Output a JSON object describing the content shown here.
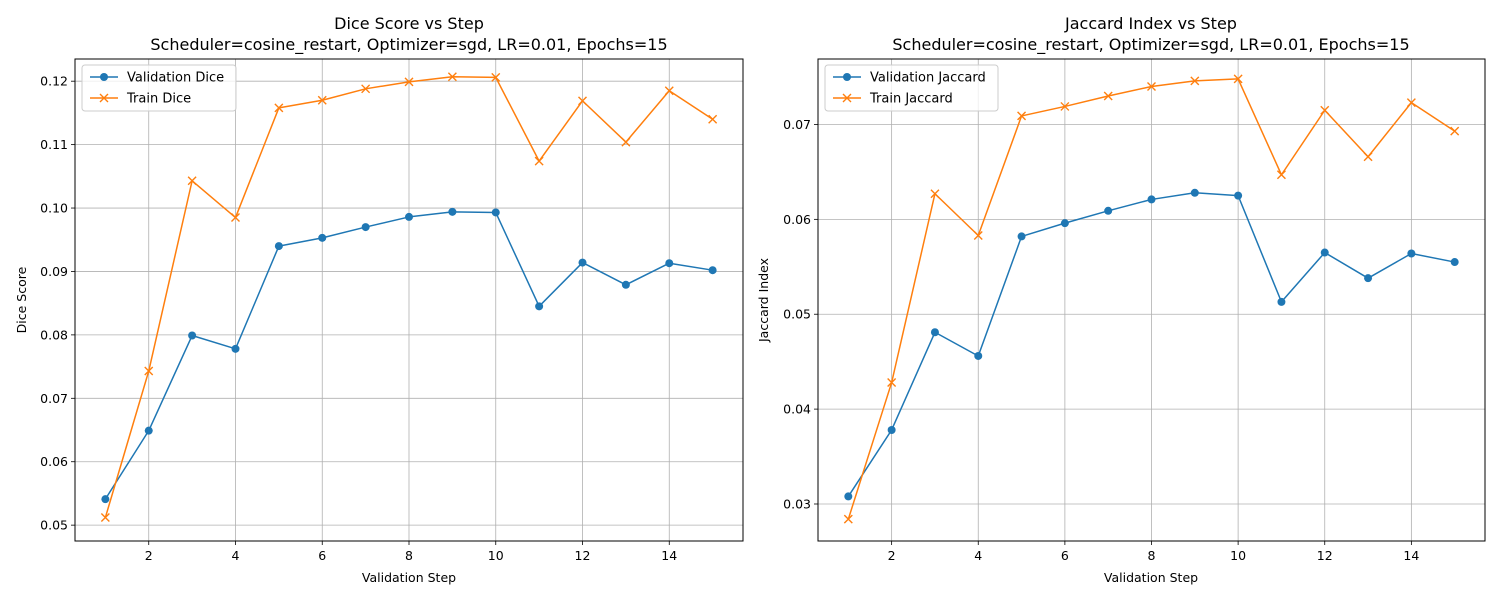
{
  "chart_data": [
    {
      "type": "line",
      "title": "Dice Score vs Step",
      "subtitle": "Scheduler=cosine_restart, Optimizer=sgd, LR=0.01, Epochs=15",
      "xlabel": "Validation Step",
      "ylabel": "Dice Score",
      "xlim": [
        0.3,
        15.7
      ],
      "ylim": [
        0.0475,
        0.1235
      ],
      "xticks": [
        2,
        4,
        6,
        8,
        10,
        12,
        14
      ],
      "yticks": [
        0.05,
        0.06,
        0.07,
        0.08,
        0.09,
        0.1,
        0.11,
        0.12
      ],
      "ytick_labels": [
        "0.05",
        "0.06",
        "0.07",
        "0.08",
        "0.09",
        "0.10",
        "0.11",
        "0.12"
      ],
      "grid": true,
      "legend_position": "top-left",
      "x": [
        1,
        2,
        3,
        4,
        5,
        6,
        7,
        8,
        9,
        10,
        11,
        12,
        13,
        14,
        15
      ],
      "series": [
        {
          "name": "Validation Dice",
          "color": "#1f77b4",
          "marker": "circle",
          "values": [
            0.0541,
            0.0649,
            0.0799,
            0.0778,
            0.094,
            0.0953,
            0.097,
            0.0986,
            0.0994,
            0.0993,
            0.0845,
            0.0914,
            0.0879,
            0.0913,
            0.0902
          ]
        },
        {
          "name": "Train Dice",
          "color": "#ff7f0e",
          "marker": "x",
          "values": [
            0.0512,
            0.0743,
            0.1043,
            0.0985,
            0.1158,
            0.117,
            0.1188,
            0.1199,
            0.1207,
            0.1206,
            0.1074,
            0.1169,
            0.1104,
            0.1185,
            0.114
          ]
        }
      ]
    },
    {
      "type": "line",
      "title": "Jaccard Index vs Step",
      "subtitle": "Scheduler=cosine_restart, Optimizer=sgd, LR=0.01, Epochs=15",
      "xlabel": "Validation Step",
      "ylabel": "Jaccard Index",
      "xlim": [
        0.3,
        15.7
      ],
      "ylim": [
        0.0261,
        0.0769
      ],
      "xticks": [
        2,
        4,
        6,
        8,
        10,
        12,
        14
      ],
      "yticks": [
        0.03,
        0.04,
        0.05,
        0.06,
        0.07
      ],
      "ytick_labels": [
        "0.03",
        "0.04",
        "0.05",
        "0.06",
        "0.07"
      ],
      "grid": true,
      "legend_position": "top-left",
      "x": [
        1,
        2,
        3,
        4,
        5,
        6,
        7,
        8,
        9,
        10,
        11,
        12,
        13,
        14,
        15
      ],
      "series": [
        {
          "name": "Validation Jaccard",
          "color": "#1f77b4",
          "marker": "circle",
          "values": [
            0.0308,
            0.0378,
            0.0481,
            0.0456,
            0.0582,
            0.0596,
            0.0609,
            0.0621,
            0.0628,
            0.0625,
            0.0513,
            0.0565,
            0.0538,
            0.0564,
            0.0555
          ]
        },
        {
          "name": "Train Jaccard",
          "color": "#ff7f0e",
          "marker": "x",
          "values": [
            0.0284,
            0.0428,
            0.0627,
            0.0583,
            0.0709,
            0.0719,
            0.073,
            0.074,
            0.0746,
            0.0748,
            0.0647,
            0.0715,
            0.0666,
            0.0723,
            0.0693
          ]
        }
      ]
    }
  ]
}
